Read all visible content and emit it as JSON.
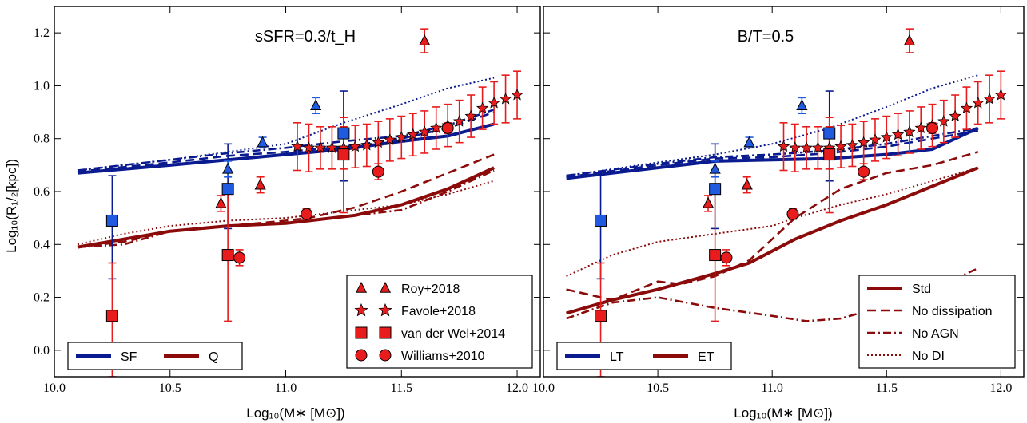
{
  "figure": {
    "ylabel": "Log₁₀(R₁/₂[kpc])",
    "xlabel": "Log₁₀(M∗ [M⊙])"
  },
  "colors": {
    "blue": "#0a1a8f",
    "darkred": "#8b0a0a",
    "red": "#e81c1c",
    "markerblue": "#1f5ae0"
  },
  "chart_data": [
    {
      "type": "line",
      "panel": "left",
      "title": "sSFR=0.3/t_H",
      "xlim": [
        10.0,
        12.1
      ],
      "ylim": [
        -0.1,
        1.3
      ],
      "xticks": [
        "10.0",
        "10.5",
        "11.0",
        "11.5",
        "12.0"
      ],
      "yticks": [
        "0.0",
        "0.2",
        "0.4",
        "0.6",
        "0.8",
        "1.0",
        "1.2"
      ],
      "legend_lines": [
        "SF",
        "Q"
      ],
      "legend_markers": [
        "Roy+2018",
        "Favole+2018",
        "van der Wel+2014",
        "Williams+2010"
      ],
      "series": [
        {
          "name": "SF",
          "color": "blue",
          "style": "solid",
          "x": [
            10.1,
            10.5,
            10.75,
            11.0,
            11.25,
            11.5,
            11.7,
            11.9
          ],
          "y": [
            0.67,
            0.7,
            0.72,
            0.74,
            0.76,
            0.79,
            0.81,
            0.855
          ]
        },
        {
          "name": "SF",
          "color": "blue",
          "style": "dashed",
          "x": [
            10.1,
            10.5,
            10.75,
            11.0,
            11.25,
            11.5,
            11.7,
            11.9
          ],
          "y": [
            0.675,
            0.71,
            0.735,
            0.75,
            0.77,
            0.8,
            0.84,
            0.9
          ]
        },
        {
          "name": "SF",
          "color": "blue",
          "style": "dashdot",
          "x": [
            10.1,
            10.5,
            10.75,
            11.0,
            11.25,
            11.5,
            11.7,
            11.9
          ],
          "y": [
            0.68,
            0.72,
            0.745,
            0.765,
            0.79,
            0.81,
            0.85,
            0.91
          ]
        },
        {
          "name": "SF",
          "color": "blue",
          "style": "dotted",
          "x": [
            10.1,
            10.5,
            10.75,
            11.0,
            11.25,
            11.5,
            11.7,
            11.9
          ],
          "y": [
            0.68,
            0.72,
            0.75,
            0.78,
            0.86,
            0.93,
            0.99,
            1.03
          ]
        },
        {
          "name": "Q",
          "color": "darkred",
          "style": "solid",
          "x": [
            10.1,
            10.3,
            10.5,
            10.75,
            11.0,
            11.1,
            11.3,
            11.5,
            11.7,
            11.9
          ],
          "y": [
            0.39,
            0.42,
            0.45,
            0.47,
            0.48,
            0.49,
            0.51,
            0.55,
            0.61,
            0.69
          ]
        },
        {
          "name": "Q",
          "color": "darkred",
          "style": "dashed",
          "x": [
            10.1,
            10.3,
            10.5,
            10.75,
            11.0,
            11.1,
            11.3,
            11.5,
            11.7,
            11.9
          ],
          "y": [
            0.39,
            0.41,
            0.45,
            0.47,
            0.49,
            0.5,
            0.54,
            0.6,
            0.67,
            0.74
          ]
        },
        {
          "name": "Q",
          "color": "darkred",
          "style": "dashdot",
          "x": [
            10.1,
            10.3,
            10.5,
            10.75,
            11.0,
            11.1,
            11.3,
            11.5,
            11.7,
            11.9
          ],
          "y": [
            0.39,
            0.4,
            0.45,
            0.47,
            0.48,
            0.49,
            0.51,
            0.53,
            0.6,
            0.68
          ]
        },
        {
          "name": "Q",
          "color": "darkred",
          "style": "dotted",
          "x": [
            10.1,
            10.3,
            10.5,
            10.75,
            11.0,
            11.1,
            11.3,
            11.5,
            11.7,
            11.9
          ],
          "y": [
            0.4,
            0.44,
            0.47,
            0.49,
            0.5,
            0.51,
            0.53,
            0.55,
            0.59,
            0.64
          ]
        }
      ]
    },
    {
      "type": "line",
      "panel": "right",
      "title": "B/T=0.5",
      "xlim": [
        10.0,
        12.1
      ],
      "ylim": [
        -0.1,
        1.3
      ],
      "xticks": [
        "10.0",
        "10.5",
        "11.0",
        "11.5",
        "12.0"
      ],
      "yticks": [
        "0.0",
        "0.2",
        "0.4",
        "0.6",
        "0.8",
        "1.0",
        "1.2"
      ],
      "legend_lines": [
        "LT",
        "ET"
      ],
      "legend_styles": [
        "Std",
        "No dissipation",
        "No AGN",
        "No DI"
      ],
      "series": [
        {
          "name": "LT",
          "color": "blue",
          "style": "solid",
          "x": [
            10.1,
            10.5,
            10.75,
            11.0,
            11.25,
            11.5,
            11.7,
            11.9
          ],
          "y": [
            0.65,
            0.69,
            0.715,
            0.72,
            0.725,
            0.74,
            0.76,
            0.84
          ]
        },
        {
          "name": "LT",
          "color": "blue",
          "style": "dashed",
          "x": [
            10.1,
            10.5,
            10.75,
            11.0,
            11.25,
            11.5,
            11.7,
            11.9
          ],
          "y": [
            0.655,
            0.7,
            0.725,
            0.73,
            0.745,
            0.77,
            0.8,
            0.83
          ]
        },
        {
          "name": "LT",
          "color": "blue",
          "style": "dashdot",
          "x": [
            10.1,
            10.5,
            10.75,
            11.0,
            11.25,
            11.5,
            11.7,
            11.9
          ],
          "y": [
            0.66,
            0.705,
            0.73,
            0.74,
            0.755,
            0.78,
            0.81,
            0.84
          ]
        },
        {
          "name": "LT",
          "color": "blue",
          "style": "dotted",
          "x": [
            10.1,
            10.5,
            10.75,
            11.0,
            11.25,
            11.5,
            11.7,
            11.9
          ],
          "y": [
            0.66,
            0.71,
            0.74,
            0.78,
            0.84,
            0.92,
            0.99,
            1.04
          ]
        },
        {
          "name": "ET",
          "color": "darkred",
          "style": "solid",
          "x": [
            10.1,
            10.3,
            10.5,
            10.75,
            10.9,
            11.1,
            11.3,
            11.5,
            11.7,
            11.9
          ],
          "y": [
            0.14,
            0.19,
            0.23,
            0.29,
            0.33,
            0.42,
            0.49,
            0.55,
            0.62,
            0.69
          ]
        },
        {
          "name": "ET",
          "color": "darkred",
          "style": "dashed",
          "x": [
            10.1,
            10.3,
            10.5,
            10.6,
            10.75,
            10.9,
            11.1,
            11.3,
            11.5,
            11.7,
            11.9
          ],
          "y": [
            0.23,
            0.19,
            0.26,
            0.25,
            0.28,
            0.34,
            0.5,
            0.61,
            0.67,
            0.7,
            0.75
          ]
        },
        {
          "name": "ET",
          "color": "darkred",
          "style": "dashdot",
          "x": [
            10.1,
            10.3,
            10.5,
            10.75,
            11.0,
            11.15,
            11.3,
            11.5,
            11.7,
            11.9
          ],
          "y": [
            0.12,
            0.18,
            0.2,
            0.16,
            0.13,
            0.11,
            0.12,
            0.17,
            0.23,
            0.31
          ]
        },
        {
          "name": "ET",
          "color": "darkred",
          "style": "dotted",
          "x": [
            10.1,
            10.3,
            10.5,
            10.75,
            11.0,
            11.1,
            11.3,
            11.5,
            11.7,
            11.9
          ],
          "y": [
            0.28,
            0.36,
            0.41,
            0.44,
            0.47,
            0.5,
            0.55,
            0.59,
            0.64,
            0.69
          ]
        }
      ]
    }
  ],
  "observations": {
    "roy2018": {
      "label": "Roy+2018",
      "red": [
        {
          "x": 10.72,
          "y": 0.555,
          "err": 0.03
        },
        {
          "x": 10.89,
          "y": 0.625,
          "err": 0.03
        },
        {
          "x": 11.6,
          "y": 1.17,
          "err": 0.045
        }
      ],
      "blue": [
        {
          "x": 10.75,
          "y": 0.685,
          "err": 0.03
        },
        {
          "x": 10.9,
          "y": 0.785,
          "err": 0.02
        },
        {
          "x": 11.13,
          "y": 0.925,
          "err": 0.03
        }
      ]
    },
    "favole2018": {
      "label": "Favole+2018",
      "points": [
        {
          "x": 11.05,
          "y": 0.77,
          "err": 0.09
        },
        {
          "x": 11.1,
          "y": 0.765,
          "err": 0.09
        },
        {
          "x": 11.15,
          "y": 0.765,
          "err": 0.08
        },
        {
          "x": 11.2,
          "y": 0.765,
          "err": 0.08
        },
        {
          "x": 11.25,
          "y": 0.765,
          "err": 0.08
        },
        {
          "x": 11.3,
          "y": 0.77,
          "err": 0.08
        },
        {
          "x": 11.35,
          "y": 0.775,
          "err": 0.08
        },
        {
          "x": 11.4,
          "y": 0.785,
          "err": 0.08
        },
        {
          "x": 11.45,
          "y": 0.795,
          "err": 0.08
        },
        {
          "x": 11.5,
          "y": 0.805,
          "err": 0.08
        },
        {
          "x": 11.55,
          "y": 0.815,
          "err": 0.08
        },
        {
          "x": 11.6,
          "y": 0.825,
          "err": 0.08
        },
        {
          "x": 11.65,
          "y": 0.84,
          "err": 0.08
        },
        {
          "x": 11.7,
          "y": 0.85,
          "err": 0.08
        },
        {
          "x": 11.75,
          "y": 0.865,
          "err": 0.08
        },
        {
          "x": 11.8,
          "y": 0.885,
          "err": 0.08
        },
        {
          "x": 11.85,
          "y": 0.915,
          "err": 0.08
        },
        {
          "x": 11.9,
          "y": 0.935,
          "err": 0.08
        },
        {
          "x": 11.95,
          "y": 0.95,
          "err": 0.09
        },
        {
          "x": 12.0,
          "y": 0.965,
          "err": 0.09
        }
      ]
    },
    "vanderwel2014": {
      "label": "van der Wel+2014",
      "blue": [
        {
          "x": 10.25,
          "y": 0.49,
          "lo": 0.27,
          "hi": 0.66
        },
        {
          "x": 10.75,
          "y": 0.61,
          "lo": 0.46,
          "hi": 0.78
        },
        {
          "x": 11.25,
          "y": 0.82,
          "lo": 0.64,
          "hi": 0.98
        }
      ],
      "red": [
        {
          "x": 10.25,
          "y": 0.13,
          "lo": -0.1,
          "hi": 0.33
        },
        {
          "x": 10.75,
          "y": 0.36,
          "lo": 0.11,
          "hi": 0.61
        },
        {
          "x": 11.25,
          "y": 0.74,
          "lo": 0.52,
          "hi": 0.88
        }
      ]
    },
    "williams2010": {
      "label": "Williams+2010",
      "points": [
        {
          "x": 10.8,
          "y": 0.35,
          "err": 0.03
        },
        {
          "x": 11.09,
          "y": 0.515,
          "err": 0.02
        },
        {
          "x": 11.4,
          "y": 0.675,
          "err": 0.03
        },
        {
          "x": 11.7,
          "y": 0.84,
          "err": 0.02
        }
      ]
    }
  }
}
